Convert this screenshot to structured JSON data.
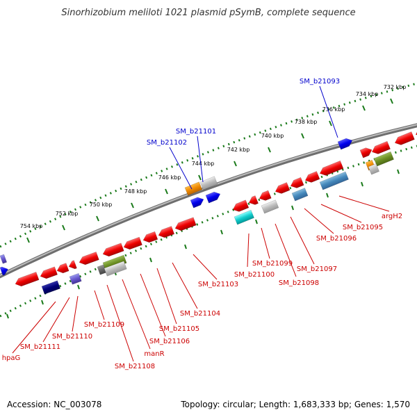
{
  "title": "Sinorhizobium meliloti 1021 plasmid pSymB, complete sequence",
  "accession": "Accession: NC_003078",
  "topology": "Topology: circular; Length: 1,683,333 bp; Genes: 1,570",
  "colors": {
    "forward_label": "#0000cc",
    "reverse_label": "#cc0000",
    "backbone": "#808080",
    "tick": "#1a7a1a"
  },
  "ticks": [
    "732 kbp",
    "734 kbp",
    "736 kbp",
    "738 kbp",
    "740 kbp",
    "742 kbp",
    "744 kbp",
    "746 kbp",
    "748 kbp",
    "750 kbp",
    "752 kbp",
    "754 kbp"
  ],
  "labels": {
    "forward": [
      "SM_b21093",
      "SM_b21101",
      "SM_b21102"
    ],
    "reverse": [
      "argH2",
      "SM_b21095",
      "SM_b21096",
      "SM_b21097",
      "SM_b21098",
      "SM_b21099",
      "SM_b21100",
      "SM_b21103",
      "SM_b21104",
      "SM_b21105",
      "SM_b21106",
      "manR",
      "SM_b21108",
      "SM_b21109",
      "SM_b21110",
      "SM_b21111",
      "hpaG"
    ]
  }
}
